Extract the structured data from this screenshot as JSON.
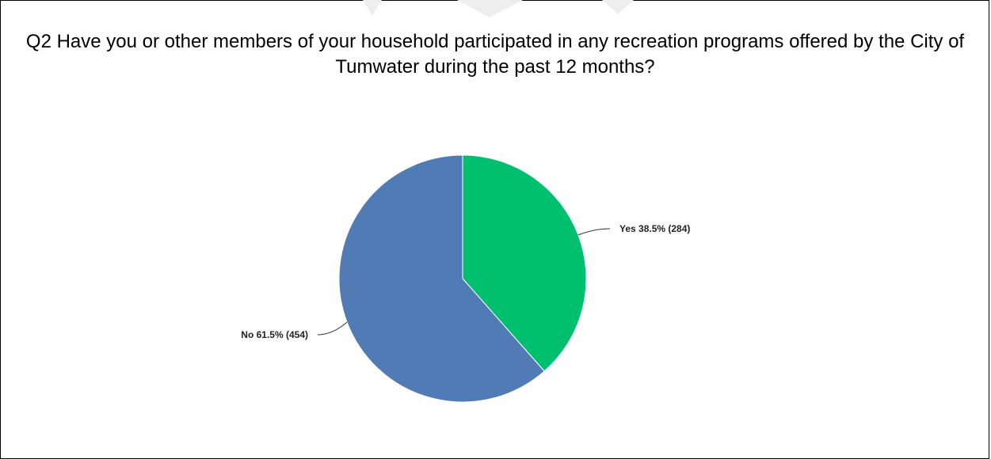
{
  "chart_data": {
    "type": "pie",
    "title": "Q2 Have you or other members of your household participated in any recreation programs offered by the City of Tumwater during the past 12 months?",
    "slices": [
      {
        "label": "Yes",
        "percent": 38.5,
        "count": 284,
        "display": "Yes 38.5% (284)",
        "color": "#00c06f"
      },
      {
        "label": "No",
        "percent": 61.5,
        "count": 454,
        "display": "No 61.5% (454)",
        "color": "#507bb5"
      }
    ],
    "legend": "none"
  }
}
